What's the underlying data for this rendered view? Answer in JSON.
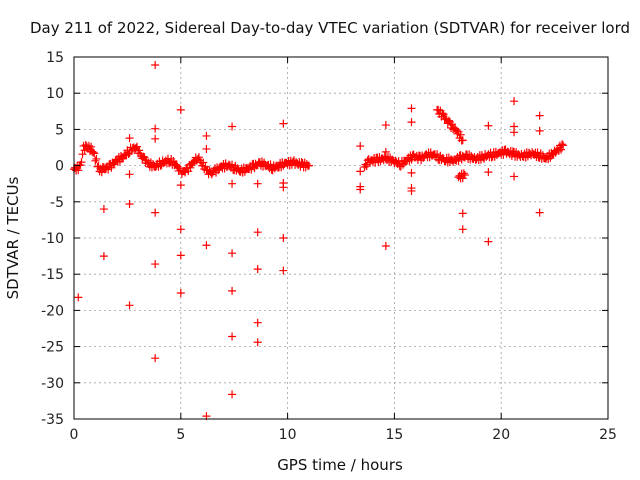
{
  "chart_data": {
    "type": "scatter",
    "title": "Day 211 of 2022, Sidereal Day-to-day VTEC variation (SDTVAR) for receiver lord",
    "xlabel": "GPS time / hours",
    "ylabel": "SDTVAR / TECUs",
    "xlim": [
      0,
      25
    ],
    "ylim": [
      -35,
      15
    ],
    "xticks": [
      "0",
      "5",
      "10",
      "15",
      "20",
      "25"
    ],
    "yticks": [
      "15",
      "10",
      "5",
      "0",
      "-5",
      "-10",
      "-15",
      "-20",
      "-25",
      "-30",
      "-35"
    ],
    "grid": true,
    "marker": "+",
    "series_color": "#ff0000",
    "trend_segments": [
      {
        "name": "segment-1",
        "points": [
          [
            0.0,
            -0.5
          ],
          [
            0.3,
            -0.2
          ],
          [
            0.45,
            2.4
          ],
          [
            0.6,
            2.6
          ],
          [
            0.9,
            2.1
          ],
          [
            1.0,
            1.0
          ],
          [
            1.2,
            -0.7
          ],
          [
            1.4,
            -0.5
          ],
          [
            1.7,
            -0.1
          ],
          [
            2.0,
            0.7
          ],
          [
            2.3,
            1.2
          ],
          [
            2.6,
            2.1
          ],
          [
            2.9,
            2.6
          ],
          [
            3.1,
            1.5
          ],
          [
            3.3,
            0.8
          ],
          [
            3.5,
            0.2
          ],
          [
            3.8,
            -0.1
          ],
          [
            4.1,
            0.4
          ],
          [
            4.5,
            0.7
          ],
          [
            4.8,
            0.0
          ],
          [
            5.0,
            -1.0
          ],
          [
            5.3,
            -0.6
          ],
          [
            5.6,
            0.5
          ],
          [
            5.8,
            1.2
          ],
          [
            6.0,
            0.3
          ],
          [
            6.2,
            -0.6
          ],
          [
            6.4,
            -1.2
          ],
          [
            6.6,
            -0.7
          ],
          [
            6.9,
            -0.2
          ],
          [
            7.2,
            0.1
          ],
          [
            7.5,
            -0.3
          ],
          [
            7.8,
            -0.7
          ],
          [
            8.1,
            -0.5
          ],
          [
            8.4,
            -0.1
          ],
          [
            8.7,
            0.3
          ],
          [
            9.0,
            0.1
          ],
          [
            9.3,
            -0.3
          ],
          [
            9.6,
            0.0
          ],
          [
            9.9,
            0.3
          ],
          [
            10.3,
            0.4
          ],
          [
            10.7,
            0.1
          ],
          [
            11.0,
            0.0
          ]
        ]
      },
      {
        "name": "segment-2",
        "points": [
          [
            13.6,
            -0.2
          ],
          [
            13.8,
            0.6
          ],
          [
            14.2,
            0.8
          ],
          [
            14.6,
            1.0
          ],
          [
            15.0,
            0.6
          ],
          [
            15.3,
            0.2
          ],
          [
            15.6,
            0.8
          ],
          [
            15.9,
            1.3
          ],
          [
            16.2,
            1.0
          ],
          [
            16.5,
            1.4
          ],
          [
            16.8,
            1.6
          ],
          [
            17.1,
            1.1
          ],
          [
            17.4,
            0.8
          ],
          [
            17.8,
            0.7
          ],
          [
            18.1,
            1.1
          ],
          [
            18.4,
            1.3
          ],
          [
            18.8,
            0.9
          ],
          [
            19.2,
            1.3
          ],
          [
            19.6,
            1.5
          ],
          [
            19.9,
            1.7
          ],
          [
            20.2,
            1.9
          ],
          [
            20.6,
            1.6
          ],
          [
            21.0,
            1.3
          ],
          [
            21.4,
            1.7
          ],
          [
            21.8,
            1.4
          ],
          [
            22.1,
            1.0
          ],
          [
            22.5,
            1.8
          ],
          [
            22.9,
            2.8
          ]
        ]
      },
      {
        "name": "segment-3",
        "points": [
          [
            17.0,
            7.7
          ],
          [
            17.3,
            6.8
          ],
          [
            17.6,
            5.7
          ],
          [
            17.9,
            4.8
          ],
          [
            18.2,
            3.5
          ]
        ]
      },
      {
        "name": "segment-4",
        "points": [
          [
            18.0,
            -1.6
          ],
          [
            18.3,
            -1.3
          ]
        ]
      }
    ],
    "scatter_points": [
      [
        0.2,
        -18.2
      ],
      [
        1.4,
        -6.0
      ],
      [
        1.4,
        -12.5
      ],
      [
        2.6,
        3.8
      ],
      [
        2.6,
        -1.2
      ],
      [
        2.6,
        -5.3
      ],
      [
        2.6,
        -19.3
      ],
      [
        3.8,
        13.9
      ],
      [
        3.8,
        5.1
      ],
      [
        3.8,
        3.7
      ],
      [
        3.8,
        -6.5
      ],
      [
        3.8,
        -13.6
      ],
      [
        3.8,
        -26.6
      ],
      [
        5.0,
        7.7
      ],
      [
        5.0,
        -2.7
      ],
      [
        5.0,
        -8.8
      ],
      [
        5.0,
        -12.4
      ],
      [
        5.0,
        -17.6
      ],
      [
        6.2,
        4.1
      ],
      [
        6.2,
        2.3
      ],
      [
        6.2,
        -11.0
      ],
      [
        6.2,
        -34.6
      ],
      [
        7.4,
        5.4
      ],
      [
        7.4,
        -2.5
      ],
      [
        7.4,
        -12.1
      ],
      [
        7.4,
        -17.3
      ],
      [
        7.4,
        -23.6
      ],
      [
        7.4,
        -31.6
      ],
      [
        8.6,
        -2.5
      ],
      [
        8.6,
        -9.2
      ],
      [
        8.6,
        -14.3
      ],
      [
        8.6,
        -21.7
      ],
      [
        8.6,
        -24.4
      ],
      [
        9.8,
        5.8
      ],
      [
        9.8,
        -2.4
      ],
      [
        9.8,
        -3.0
      ],
      [
        9.8,
        -10.0
      ],
      [
        9.8,
        -14.5
      ],
      [
        13.4,
        2.7
      ],
      [
        13.4,
        -0.8
      ],
      [
        13.4,
        -2.9
      ],
      [
        13.4,
        -3.3
      ],
      [
        14.6,
        5.6
      ],
      [
        14.6,
        1.9
      ],
      [
        14.6,
        -11.1
      ],
      [
        15.8,
        7.9
      ],
      [
        15.8,
        6.0
      ],
      [
        15.8,
        -1.0
      ],
      [
        15.8,
        -3.1
      ],
      [
        15.8,
        -3.5
      ],
      [
        18.2,
        -6.6
      ],
      [
        18.2,
        -8.8
      ],
      [
        19.4,
        5.5
      ],
      [
        19.4,
        -0.9
      ],
      [
        19.4,
        -10.5
      ],
      [
        20.6,
        8.9
      ],
      [
        20.6,
        5.4
      ],
      [
        20.6,
        4.6
      ],
      [
        20.6,
        -1.5
      ],
      [
        21.8,
        6.9
      ],
      [
        21.8,
        4.8
      ],
      [
        21.8,
        -6.5
      ]
    ]
  }
}
